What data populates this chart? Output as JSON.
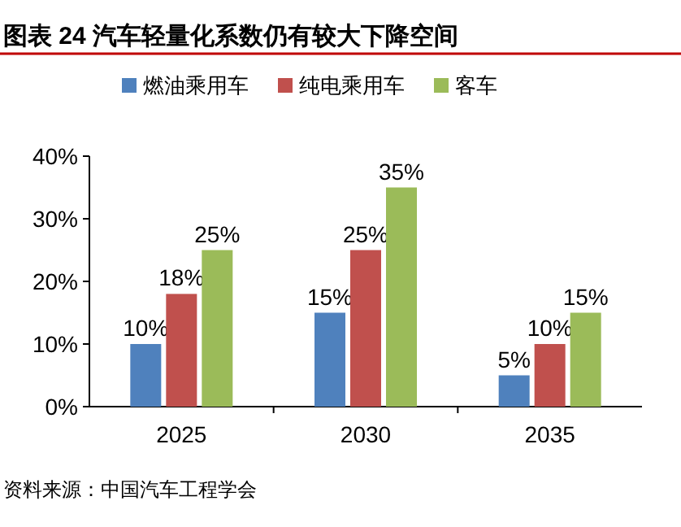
{
  "chart_data": {
    "type": "bar",
    "title": "图表 24 汽车轻量化系数仍有较大下降空间",
    "categories": [
      "2025",
      "2030",
      "2035"
    ],
    "series": [
      {
        "name": "燃油乘用车",
        "color": "#4f81bd",
        "values": [
          10,
          15,
          5
        ],
        "value_labels": [
          "10%",
          "15%",
          "5%"
        ]
      },
      {
        "name": "纯电乘用车",
        "color": "#c0504d",
        "values": [
          18,
          25,
          10
        ],
        "value_labels": [
          "18%",
          "25%",
          "10%"
        ]
      },
      {
        "name": "客车",
        "color": "#9bbb59",
        "values": [
          25,
          35,
          15
        ],
        "value_labels": [
          "25%",
          "35%",
          "15%"
        ]
      }
    ],
    "ylim": [
      0,
      40
    ],
    "yticks": [
      {
        "value": 0,
        "label": "0%"
      },
      {
        "value": 10,
        "label": "10%"
      },
      {
        "value": 20,
        "label": "20%"
      },
      {
        "value": 30,
        "label": "30%"
      },
      {
        "value": 40,
        "label": "40%"
      }
    ],
    "legend": "top",
    "annotations": [
      "资料来源：中国汽车工程学会"
    ]
  }
}
